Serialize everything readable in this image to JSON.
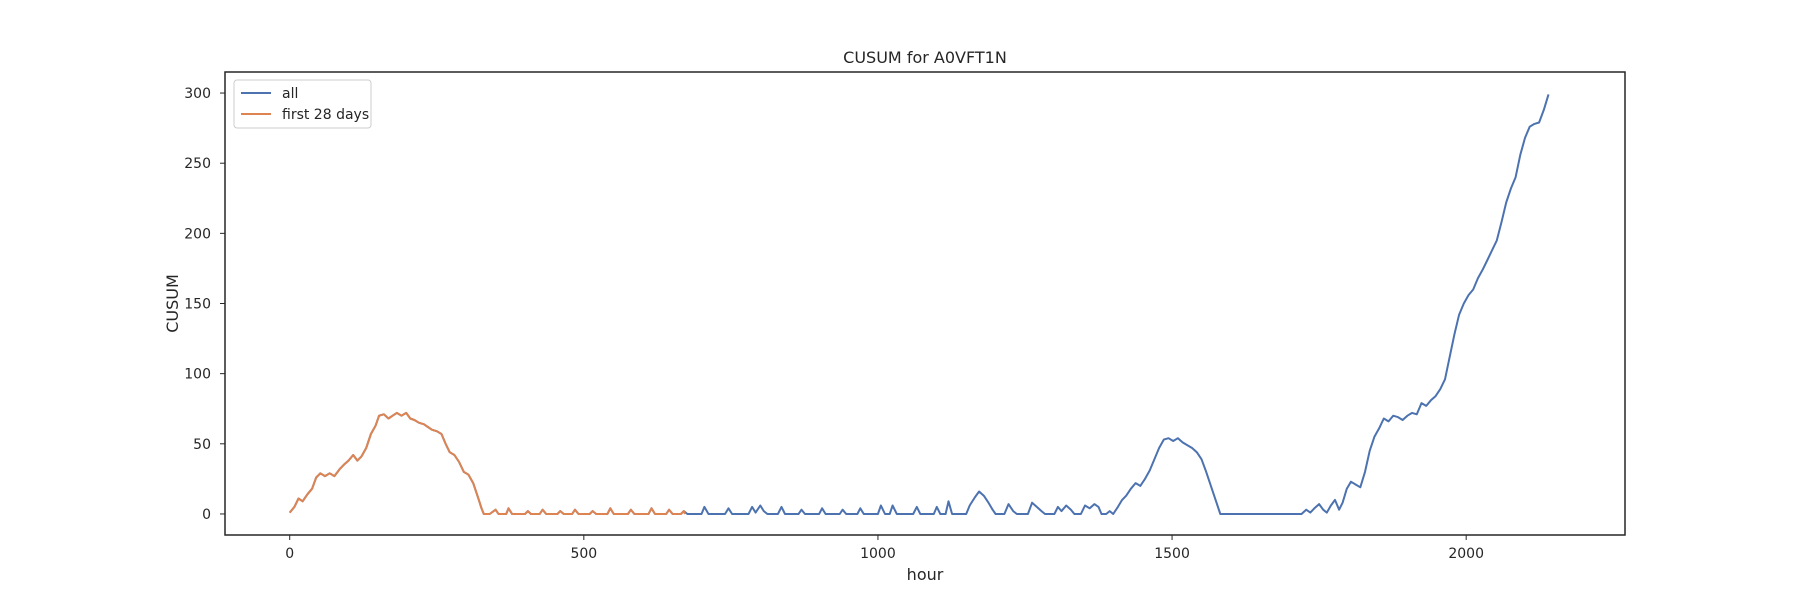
{
  "chart_data": {
    "type": "line",
    "title": "CUSUM for A0VFT1N",
    "xlabel": "hour",
    "ylabel": "CUSUM",
    "xlim": [
      -110,
      2270
    ],
    "ylim": [
      -15,
      315
    ],
    "xticks": [
      0,
      500,
      1000,
      1500,
      2000
    ],
    "yticks": [
      0,
      50,
      100,
      150,
      200,
      250,
      300
    ],
    "grid": false,
    "legend": "top-left",
    "series": [
      {
        "name": "all",
        "color": "#4c72b0",
        "points": [
          [
            0,
            1
          ],
          [
            8,
            5
          ],
          [
            15,
            11
          ],
          [
            22,
            9
          ],
          [
            30,
            14
          ],
          [
            38,
            18
          ],
          [
            45,
            26
          ],
          [
            52,
            29
          ],
          [
            60,
            27
          ],
          [
            68,
            29
          ],
          [
            76,
            27
          ],
          [
            85,
            32
          ],
          [
            92,
            35
          ],
          [
            100,
            38
          ],
          [
            108,
            42
          ],
          [
            115,
            38
          ],
          [
            122,
            41
          ],
          [
            130,
            47
          ],
          [
            138,
            57
          ],
          [
            146,
            63
          ],
          [
            152,
            70
          ],
          [
            160,
            71
          ],
          [
            168,
            68
          ],
          [
            175,
            70
          ],
          [
            182,
            72
          ],
          [
            190,
            70
          ],
          [
            198,
            72
          ],
          [
            205,
            68
          ],
          [
            212,
            67
          ],
          [
            220,
            65
          ],
          [
            228,
            64
          ],
          [
            235,
            62
          ],
          [
            242,
            60
          ],
          [
            250,
            59
          ],
          [
            258,
            57
          ],
          [
            265,
            50
          ],
          [
            272,
            44
          ],
          [
            280,
            42
          ],
          [
            288,
            37
          ],
          [
            296,
            30
          ],
          [
            304,
            28
          ],
          [
            312,
            22
          ],
          [
            320,
            12
          ],
          [
            326,
            4
          ],
          [
            330,
            0
          ],
          [
            340,
            0
          ],
          [
            350,
            3
          ],
          [
            355,
            0
          ],
          [
            368,
            0
          ],
          [
            372,
            4
          ],
          [
            378,
            0
          ],
          [
            400,
            0
          ],
          [
            405,
            2
          ],
          [
            410,
            0
          ],
          [
            425,
            0
          ],
          [
            430,
            3
          ],
          [
            436,
            0
          ],
          [
            455,
            0
          ],
          [
            460,
            2
          ],
          [
            466,
            0
          ],
          [
            480,
            0
          ],
          [
            485,
            3
          ],
          [
            491,
            0
          ],
          [
            510,
            0
          ],
          [
            515,
            2
          ],
          [
            521,
            0
          ],
          [
            540,
            0
          ],
          [
            545,
            4
          ],
          [
            551,
            0
          ],
          [
            575,
            0
          ],
          [
            580,
            3
          ],
          [
            586,
            0
          ],
          [
            610,
            0
          ],
          [
            615,
            4
          ],
          [
            621,
            0
          ],
          [
            640,
            0
          ],
          [
            645,
            3
          ],
          [
            651,
            0
          ],
          [
            665,
            0
          ],
          [
            670,
            2
          ],
          [
            676,
            0
          ],
          [
            700,
            0
          ],
          [
            705,
            5
          ],
          [
            712,
            0
          ],
          [
            740,
            0
          ],
          [
            746,
            4
          ],
          [
            752,
            0
          ],
          [
            780,
            0
          ],
          [
            786,
            5
          ],
          [
            792,
            1
          ],
          [
            800,
            6
          ],
          [
            806,
            2
          ],
          [
            812,
            0
          ],
          [
            830,
            0
          ],
          [
            836,
            5
          ],
          [
            842,
            0
          ],
          [
            865,
            0
          ],
          [
            870,
            3
          ],
          [
            876,
            0
          ],
          [
            900,
            0
          ],
          [
            905,
            4
          ],
          [
            911,
            0
          ],
          [
            935,
            0
          ],
          [
            940,
            3
          ],
          [
            946,
            0
          ],
          [
            965,
            0
          ],
          [
            970,
            4
          ],
          [
            976,
            0
          ],
          [
            1000,
            0
          ],
          [
            1005,
            6
          ],
          [
            1012,
            0
          ],
          [
            1020,
            0
          ],
          [
            1025,
            6
          ],
          [
            1032,
            0
          ],
          [
            1060,
            0
          ],
          [
            1066,
            5
          ],
          [
            1072,
            0
          ],
          [
            1095,
            0
          ],
          [
            1100,
            5
          ],
          [
            1106,
            0
          ],
          [
            1115,
            0
          ],
          [
            1120,
            9
          ],
          [
            1126,
            0
          ],
          [
            1150,
            0
          ],
          [
            1156,
            6
          ],
          [
            1165,
            12
          ],
          [
            1172,
            16
          ],
          [
            1180,
            13
          ],
          [
            1188,
            8
          ],
          [
            1195,
            3
          ],
          [
            1200,
            0
          ],
          [
            1215,
            0
          ],
          [
            1222,
            7
          ],
          [
            1230,
            2
          ],
          [
            1236,
            0
          ],
          [
            1255,
            0
          ],
          [
            1262,
            8
          ],
          [
            1270,
            5
          ],
          [
            1278,
            2
          ],
          [
            1284,
            0
          ],
          [
            1300,
            0
          ],
          [
            1306,
            5
          ],
          [
            1312,
            2
          ],
          [
            1320,
            6
          ],
          [
            1328,
            3
          ],
          [
            1334,
            0
          ],
          [
            1345,
            0
          ],
          [
            1352,
            6
          ],
          [
            1360,
            4
          ],
          [
            1368,
            7
          ],
          [
            1375,
            5
          ],
          [
            1380,
            0
          ],
          [
            1388,
            0
          ],
          [
            1394,
            2
          ],
          [
            1400,
            0
          ],
          [
            1408,
            5
          ],
          [
            1415,
            10
          ],
          [
            1422,
            13
          ],
          [
            1430,
            18
          ],
          [
            1438,
            22
          ],
          [
            1446,
            20
          ],
          [
            1454,
            25
          ],
          [
            1462,
            31
          ],
          [
            1470,
            39
          ],
          [
            1478,
            47
          ],
          [
            1486,
            53
          ],
          [
            1494,
            54
          ],
          [
            1502,
            52
          ],
          [
            1510,
            54
          ],
          [
            1518,
            51
          ],
          [
            1526,
            49
          ],
          [
            1534,
            47
          ],
          [
            1542,
            44
          ],
          [
            1550,
            39
          ],
          [
            1558,
            30
          ],
          [
            1566,
            20
          ],
          [
            1574,
            10
          ],
          [
            1582,
            0
          ],
          [
            1720,
            0
          ],
          [
            1728,
            3
          ],
          [
            1735,
            1
          ],
          [
            1742,
            4
          ],
          [
            1750,
            7
          ],
          [
            1757,
            3
          ],
          [
            1763,
            1
          ],
          [
            1770,
            6
          ],
          [
            1777,
            10
          ],
          [
            1784,
            3
          ],
          [
            1790,
            8
          ],
          [
            1797,
            18
          ],
          [
            1804,
            23
          ],
          [
            1812,
            21
          ],
          [
            1820,
            19
          ],
          [
            1828,
            30
          ],
          [
            1836,
            45
          ],
          [
            1844,
            55
          ],
          [
            1852,
            61
          ],
          [
            1860,
            68
          ],
          [
            1868,
            66
          ],
          [
            1876,
            70
          ],
          [
            1884,
            69
          ],
          [
            1892,
            67
          ],
          [
            1900,
            70
          ],
          [
            1908,
            72
          ],
          [
            1916,
            71
          ],
          [
            1924,
            79
          ],
          [
            1932,
            77
          ],
          [
            1940,
            81
          ],
          [
            1948,
            84
          ],
          [
            1956,
            89
          ],
          [
            1964,
            96
          ],
          [
            1972,
            112
          ],
          [
            1980,
            128
          ],
          [
            1988,
            142
          ],
          [
            1996,
            150
          ],
          [
            2004,
            156
          ],
          [
            2012,
            160
          ],
          [
            2020,
            168
          ],
          [
            2028,
            174
          ],
          [
            2036,
            181
          ],
          [
            2044,
            188
          ],
          [
            2052,
            195
          ],
          [
            2060,
            208
          ],
          [
            2068,
            222
          ],
          [
            2076,
            232
          ],
          [
            2084,
            240
          ],
          [
            2092,
            256
          ],
          [
            2100,
            268
          ],
          [
            2108,
            276
          ],
          [
            2116,
            278
          ],
          [
            2124,
            279
          ],
          [
            2132,
            288
          ],
          [
            2140,
            299
          ]
        ]
      },
      {
        "name": "first 28 days",
        "color": "#dd8452",
        "points": [
          [
            0,
            1
          ],
          [
            8,
            5
          ],
          [
            15,
            11
          ],
          [
            22,
            9
          ],
          [
            30,
            14
          ],
          [
            38,
            18
          ],
          [
            45,
            26
          ],
          [
            52,
            29
          ],
          [
            60,
            27
          ],
          [
            68,
            29
          ],
          [
            76,
            27
          ],
          [
            85,
            32
          ],
          [
            92,
            35
          ],
          [
            100,
            38
          ],
          [
            108,
            42
          ],
          [
            115,
            38
          ],
          [
            122,
            41
          ],
          [
            130,
            47
          ],
          [
            138,
            57
          ],
          [
            146,
            63
          ],
          [
            152,
            70
          ],
          [
            160,
            71
          ],
          [
            168,
            68
          ],
          [
            175,
            70
          ],
          [
            182,
            72
          ],
          [
            190,
            70
          ],
          [
            198,
            72
          ],
          [
            205,
            68
          ],
          [
            212,
            67
          ],
          [
            220,
            65
          ],
          [
            228,
            64
          ],
          [
            235,
            62
          ],
          [
            242,
            60
          ],
          [
            250,
            59
          ],
          [
            258,
            57
          ],
          [
            265,
            50
          ],
          [
            272,
            44
          ],
          [
            280,
            42
          ],
          [
            288,
            37
          ],
          [
            296,
            30
          ],
          [
            304,
            28
          ],
          [
            312,
            22
          ],
          [
            320,
            12
          ],
          [
            326,
            4
          ],
          [
            330,
            0
          ],
          [
            340,
            0
          ],
          [
            350,
            3
          ],
          [
            355,
            0
          ],
          [
            368,
            0
          ],
          [
            372,
            4
          ],
          [
            378,
            0
          ],
          [
            400,
            0
          ],
          [
            405,
            2
          ],
          [
            410,
            0
          ],
          [
            425,
            0
          ],
          [
            430,
            3
          ],
          [
            436,
            0
          ],
          [
            455,
            0
          ],
          [
            460,
            2
          ],
          [
            466,
            0
          ],
          [
            480,
            0
          ],
          [
            485,
            3
          ],
          [
            491,
            0
          ],
          [
            510,
            0
          ],
          [
            515,
            2
          ],
          [
            521,
            0
          ],
          [
            540,
            0
          ],
          [
            545,
            4
          ],
          [
            551,
            0
          ],
          [
            575,
            0
          ],
          [
            580,
            3
          ],
          [
            586,
            0
          ],
          [
            610,
            0
          ],
          [
            615,
            4
          ],
          [
            621,
            0
          ],
          [
            640,
            0
          ],
          [
            645,
            3
          ],
          [
            651,
            0
          ],
          [
            665,
            0
          ],
          [
            670,
            2
          ],
          [
            672,
            0
          ]
        ]
      }
    ]
  }
}
